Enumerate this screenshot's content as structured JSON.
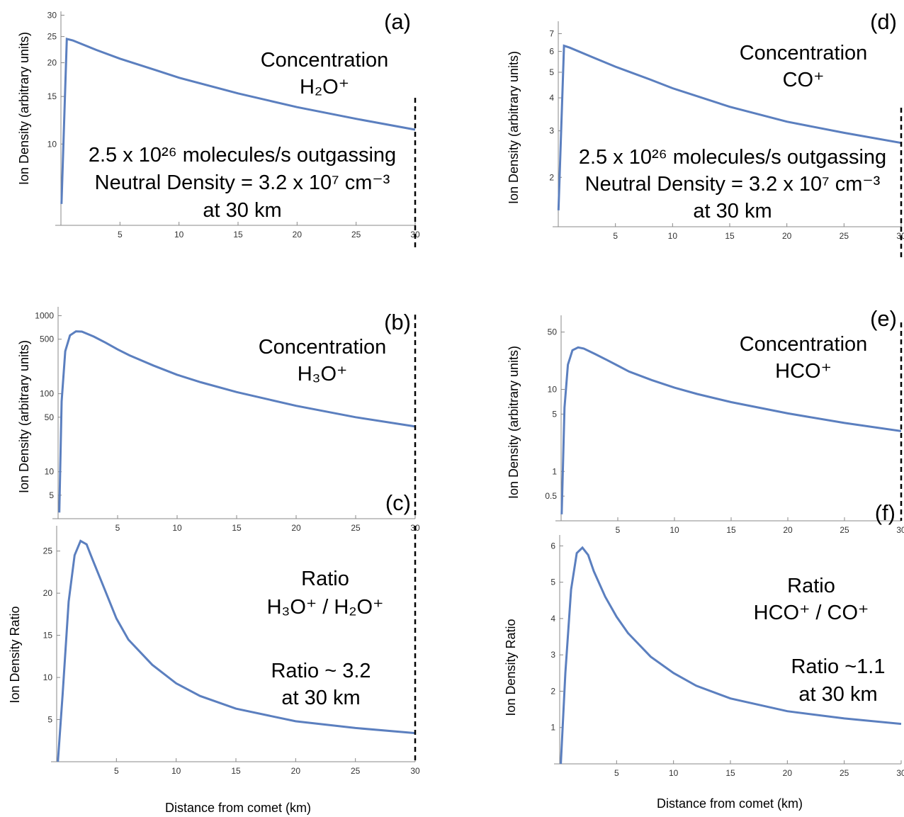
{
  "chart_data": [
    {
      "panel": "(a)",
      "type": "line",
      "yscale": "log",
      "xlabel": "",
      "ylabel": "Ion Density (arbitrary units)",
      "xlim": [
        0,
        30
      ],
      "ylim": [
        5,
        31
      ],
      "xticks": [
        "5",
        "10",
        "15",
        "20",
        "25",
        "30"
      ],
      "yticks": [
        "10",
        "15",
        "20",
        "25",
        "30"
      ],
      "series": [
        {
          "x": [
            0.05,
            0.5,
            1,
            3,
            5,
            8,
            10,
            15,
            20,
            25,
            30
          ],
          "y": [
            6,
            24.5,
            24.2,
            22.3,
            20.7,
            18.8,
            17.6,
            15.4,
            13.7,
            12.4,
            11.3
          ]
        }
      ],
      "vline_x": 30,
      "annotations": {
        "title_lines": [
          "Concentration",
          "H₂O⁺"
        ],
        "text_lines": [
          "2.5 x 10²⁶ molecules/s outgassing",
          "Neutral Density = 3.2 x 10⁷ cm⁻³",
          "at 30 km"
        ]
      }
    },
    {
      "panel": "(b)",
      "type": "line",
      "yscale": "log",
      "xlabel": "",
      "ylabel": "Ion Density (arbitrary units)",
      "xlim": [
        0,
        30
      ],
      "ylim": [
        2.5,
        1300
      ],
      "xticks": [
        "5",
        "10",
        "15",
        "20",
        "25",
        "30"
      ],
      "yticks": [
        "5",
        "10",
        "50",
        "100",
        "500",
        "1000"
      ],
      "series": [
        {
          "x": [
            0.1,
            0.3,
            0.6,
            1,
            1.5,
            2,
            3,
            4,
            5,
            6,
            8,
            10,
            12,
            15,
            20,
            25,
            30
          ],
          "y": [
            3,
            80,
            350,
            560,
            630,
            625,
            540,
            450,
            370,
            310,
            230,
            175,
            140,
            105,
            70,
            50,
            38
          ]
        }
      ],
      "vline_x": 30,
      "annotations": {
        "title_lines": [
          "Concentration",
          "H₃O⁺"
        ]
      }
    },
    {
      "panel": "(c)",
      "type": "line",
      "yscale": "linear",
      "xlabel": "Distance from comet (km)",
      "ylabel": "Ion Density Ratio",
      "xlim": [
        0,
        30
      ],
      "ylim": [
        0,
        28
      ],
      "xticks": [
        "5",
        "10",
        "15",
        "20",
        "25",
        "30"
      ],
      "yticks": [
        "5",
        "10",
        "15",
        "20",
        "25"
      ],
      "series": [
        {
          "x": [
            0.1,
            0.5,
            1,
            1.5,
            2,
            2.5,
            3,
            4,
            5,
            6,
            8,
            10,
            12,
            15,
            20,
            25,
            30
          ],
          "y": [
            0,
            8,
            19,
            24.5,
            26.2,
            25.8,
            24,
            20.5,
            17,
            14.5,
            11.5,
            9.3,
            7.8,
            6.3,
            4.8,
            4,
            3.4
          ]
        }
      ],
      "vline_x": 30,
      "annotations": {
        "title_lines": [
          "Ratio",
          "H₃O⁺ / H₂O⁺"
        ],
        "text_lines": [
          "Ratio ~ 3.2",
          "at 30 km"
        ]
      }
    },
    {
      "panel": "(d)",
      "type": "line",
      "yscale": "log",
      "xlabel": "",
      "ylabel": "Ion Density (arbitrary units)",
      "xlim": [
        0,
        30
      ],
      "ylim": [
        1.3,
        7.8
      ],
      "xticks": [
        "5",
        "10",
        "15",
        "20",
        "25",
        "30"
      ],
      "yticks": [
        "2",
        "3",
        "4",
        "5",
        "6",
        "7"
      ],
      "series": [
        {
          "x": [
            0.02,
            0.5,
            1,
            3,
            5,
            8,
            10,
            15,
            20,
            25,
            30
          ],
          "y": [
            1.5,
            6.3,
            6.2,
            5.7,
            5.25,
            4.7,
            4.35,
            3.7,
            3.25,
            2.95,
            2.7
          ]
        }
      ],
      "vline_x": 30,
      "annotations": {
        "title_lines": [
          "Concentration",
          "CO⁺"
        ],
        "text_lines": [
          "2.5 x 10²⁶ molecules/s outgassing",
          "Neutral Density = 3.2 x 10⁷ cm⁻³",
          "at 30 km"
        ]
      }
    },
    {
      "panel": "(e)",
      "type": "line",
      "yscale": "log",
      "xlabel": "",
      "ylabel": "Ion Density (arbitrary units)",
      "xlim": [
        0,
        30
      ],
      "ylim": [
        0.25,
        80
      ],
      "xticks": [
        "5",
        "10",
        "15",
        "20",
        "25",
        "30"
      ],
      "yticks": [
        "0.5",
        "1",
        "5",
        "10",
        "50"
      ],
      "series": [
        {
          "x": [
            0.05,
            0.3,
            0.6,
            1,
            1.5,
            2,
            3,
            4,
            5,
            6,
            8,
            10,
            12,
            15,
            20,
            25,
            30
          ],
          "y": [
            0.3,
            6,
            20,
            30,
            32.5,
            31.5,
            27,
            23,
            19.5,
            16.5,
            13,
            10.5,
            8.8,
            7,
            5.1,
            3.9,
            3.1
          ]
        }
      ],
      "vline_x": 30,
      "annotations": {
        "title_lines": [
          "Concentration",
          "HCO⁺"
        ]
      }
    },
    {
      "panel": "(f)",
      "type": "line",
      "yscale": "linear",
      "xlabel": "Distance from comet (km)",
      "ylabel": "Ion Density Ratio",
      "xlim": [
        0,
        30
      ],
      "ylim": [
        0,
        6.3
      ],
      "xticks": [
        "5",
        "10",
        "15",
        "20",
        "25",
        "30"
      ],
      "yticks": [
        "1",
        "2",
        "3",
        "4",
        "5",
        "6"
      ],
      "series": [
        {
          "x": [
            0.1,
            0.5,
            1,
            1.5,
            2,
            2.5,
            3,
            4,
            5,
            6,
            8,
            10,
            12,
            15,
            20,
            25,
            30
          ],
          "y": [
            0,
            2.5,
            4.8,
            5.8,
            5.95,
            5.75,
            5.3,
            4.6,
            4.05,
            3.6,
            2.95,
            2.5,
            2.15,
            1.8,
            1.45,
            1.25,
            1.1
          ]
        }
      ],
      "annotations": {
        "title_lines": [
          "Ratio",
          "HCO⁺ / CO⁺"
        ],
        "text_lines": [
          "Ratio ~1.1",
          "at 30 km"
        ]
      }
    }
  ]
}
